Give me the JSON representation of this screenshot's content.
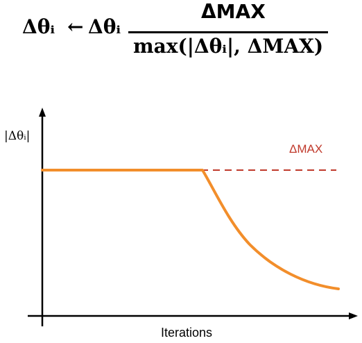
{
  "formula": {
    "lhs": "Δθᵢ",
    "arrow": "←",
    "rhs": "Δθᵢ",
    "numerator": "ΔMAX",
    "denominator": "max(|Δθᵢ|,  ΔMAX)"
  },
  "chart_data": {
    "type": "line",
    "title": "",
    "ylabel": "|Δθᵢ|",
    "xlabel": "Iterations",
    "series": [
      {
        "name": "",
        "color": "#f28e2b",
        "style": "solid"
      },
      {
        "name": "",
        "color": "#c0392b",
        "style": "dashed"
      }
    ],
    "annotation": "ΔMAX"
  }
}
